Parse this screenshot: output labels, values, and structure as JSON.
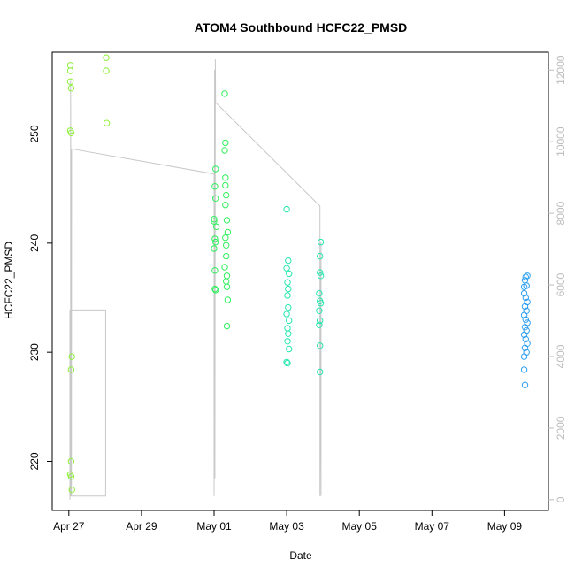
{
  "chart_data": {
    "type": "scatter",
    "title": "ATOM4 Southbound HCFC22_PMSD",
    "xlabel": "Date",
    "ylabel": "HCFC22_PMSD",
    "xlim": [
      "2016-04-26T13:00",
      "2016-05-10T05:00"
    ],
    "ylim": [
      215.5,
      257.5
    ],
    "x_ticks": [
      {
        "x": "2016-04-27",
        "label": "Apr 27"
      },
      {
        "x": "2016-04-29",
        "label": "Apr 29"
      },
      {
        "x": "2016-05-01",
        "label": "May 01"
      },
      {
        "x": "2016-05-03",
        "label": "May 03"
      },
      {
        "x": "2016-05-05",
        "label": "May 05"
      },
      {
        "x": "2016-05-07",
        "label": "May 07"
      },
      {
        "x": "2016-05-09",
        "label": "May 09"
      }
    ],
    "y_ticks": [
      220,
      230,
      240,
      250
    ],
    "right_axis": {
      "ticks": [
        "0",
        "2000",
        "4000",
        "6000",
        "8000",
        "10000",
        "12000"
      ],
      "ylim": [
        -300,
        12500
      ],
      "color": "#bdbdbd"
    },
    "grid": false,
    "marker_colors": [
      "#8ef03a",
      "#2fef5c",
      "#26e6b0",
      "#2f9ff0"
    ],
    "altitude_color": "#c8c8c8",
    "series": [
      {
        "values": [
          {
            "x": "2016-04-27T01:00",
            "y": 256.3
          },
          {
            "x": "2016-04-27T01:00",
            "y": 255.8
          },
          {
            "x": "2016-04-27T01:00",
            "y": 254.8
          },
          {
            "x": "2016-04-27T01:30",
            "y": 254.2
          },
          {
            "x": "2016-04-27T01:00",
            "y": 250.3
          },
          {
            "x": "2016-04-27T01:30",
            "y": 250.1
          },
          {
            "x": "2016-04-27T02:00",
            "y": 229.6
          },
          {
            "x": "2016-04-27T01:30",
            "y": 228.4
          },
          {
            "x": "2016-04-27T01:30",
            "y": 220.0
          },
          {
            "x": "2016-04-27T01:00",
            "y": 218.8
          },
          {
            "x": "2016-04-27T01:30",
            "y": 218.6
          },
          {
            "x": "2016-04-27T02:00",
            "y": 217.4
          },
          {
            "x": "2016-04-28T00:40",
            "y": 257.0
          },
          {
            "x": "2016-04-28T00:40",
            "y": 255.8
          },
          {
            "x": "2016-04-28T01:00",
            "y": 251.0
          }
        ]
      },
      {
        "values": [
          {
            "x": "2016-05-01T00:00",
            "y": 242.2
          },
          {
            "x": "2016-05-01T01:00",
            "y": 246.8
          },
          {
            "x": "2016-05-01T00:30",
            "y": 245.2
          },
          {
            "x": "2016-05-01T01:00",
            "y": 244.1
          },
          {
            "x": "2016-05-01T00:00",
            "y": 242.0
          },
          {
            "x": "2016-05-01T01:30",
            "y": 241.5
          },
          {
            "x": "2016-05-01T00:30",
            "y": 240.4
          },
          {
            "x": "2016-05-01T01:00",
            "y": 240.1
          },
          {
            "x": "2016-05-01T00:00",
            "y": 239.5
          },
          {
            "x": "2016-05-01T00:30",
            "y": 237.5
          },
          {
            "x": "2016-05-01T00:30",
            "y": 235.8
          },
          {
            "x": "2016-05-01T01:00",
            "y": 235.7
          },
          {
            "x": "2016-05-01T07:00",
            "y": 253.7
          },
          {
            "x": "2016-05-01T07:30",
            "y": 249.2
          },
          {
            "x": "2016-05-01T07:00",
            "y": 248.5
          },
          {
            "x": "2016-05-01T07:30",
            "y": 246.0
          },
          {
            "x": "2016-05-01T07:30",
            "y": 245.3
          },
          {
            "x": "2016-05-01T08:00",
            "y": 244.4
          },
          {
            "x": "2016-05-01T07:30",
            "y": 243.5
          },
          {
            "x": "2016-05-01T08:30",
            "y": 242.1
          },
          {
            "x": "2016-05-01T09:00",
            "y": 241.0
          },
          {
            "x": "2016-05-01T07:30",
            "y": 240.5
          },
          {
            "x": "2016-05-01T08:00",
            "y": 239.8
          },
          {
            "x": "2016-05-01T07:00",
            "y": 237.8
          },
          {
            "x": "2016-05-01T08:00",
            "y": 238.8
          },
          {
            "x": "2016-05-01T08:30",
            "y": 237.0
          },
          {
            "x": "2016-05-01T08:00",
            "y": 236.5
          },
          {
            "x": "2016-05-01T08:30",
            "y": 236.0
          },
          {
            "x": "2016-05-01T09:00",
            "y": 234.8
          },
          {
            "x": "2016-05-01T08:30",
            "y": 232.4
          }
        ]
      },
      {
        "values": [
          {
            "x": "2016-05-03T00:00",
            "y": 243.1
          },
          {
            "x": "2016-05-03T01:00",
            "y": 238.4
          },
          {
            "x": "2016-05-03T00:00",
            "y": 237.7
          },
          {
            "x": "2016-05-03T01:30",
            "y": 237.2
          },
          {
            "x": "2016-05-03T00:30",
            "y": 236.4
          },
          {
            "x": "2016-05-03T01:00",
            "y": 235.8
          },
          {
            "x": "2016-05-03T00:30",
            "y": 235.2
          },
          {
            "x": "2016-05-03T01:00",
            "y": 234.1
          },
          {
            "x": "2016-05-03T00:00",
            "y": 233.5
          },
          {
            "x": "2016-05-03T01:30",
            "y": 232.9
          },
          {
            "x": "2016-05-03T00:30",
            "y": 232.2
          },
          {
            "x": "2016-05-03T01:00",
            "y": 231.7
          },
          {
            "x": "2016-05-03T00:30",
            "y": 231.0
          },
          {
            "x": "2016-05-03T01:30",
            "y": 230.3
          },
          {
            "x": "2016-05-03T00:00",
            "y": 229.1
          },
          {
            "x": "2016-05-03T00:30",
            "y": 229.0
          },
          {
            "x": "2016-05-03T22:30",
            "y": 240.1
          },
          {
            "x": "2016-05-03T22:00",
            "y": 238.8
          },
          {
            "x": "2016-05-03T22:00",
            "y": 237.3
          },
          {
            "x": "2016-05-03T22:30",
            "y": 237.0
          },
          {
            "x": "2016-05-03T21:30",
            "y": 235.4
          },
          {
            "x": "2016-05-03T22:00",
            "y": 234.7
          },
          {
            "x": "2016-05-03T22:30",
            "y": 234.5
          },
          {
            "x": "2016-05-03T21:30",
            "y": 233.8
          },
          {
            "x": "2016-05-03T22:00",
            "y": 232.9
          },
          {
            "x": "2016-05-03T21:30",
            "y": 232.5
          },
          {
            "x": "2016-05-03T22:00",
            "y": 230.6
          },
          {
            "x": "2016-05-03T22:00",
            "y": 228.2
          }
        ]
      },
      {
        "values": [
          {
            "x": "2016-05-09T13:00",
            "y": 236.0
          },
          {
            "x": "2016-05-09T14:00",
            "y": 236.9
          },
          {
            "x": "2016-05-09T15:00",
            "y": 237.0
          },
          {
            "x": "2016-05-09T13:30",
            "y": 236.6
          },
          {
            "x": "2016-05-09T14:30",
            "y": 236.1
          },
          {
            "x": "2016-05-09T13:00",
            "y": 235.4
          },
          {
            "x": "2016-05-09T14:00",
            "y": 235.0
          },
          {
            "x": "2016-05-09T15:00",
            "y": 234.6
          },
          {
            "x": "2016-05-09T13:30",
            "y": 234.2
          },
          {
            "x": "2016-05-09T14:30",
            "y": 233.8
          },
          {
            "x": "2016-05-09T13:00",
            "y": 233.4
          },
          {
            "x": "2016-05-09T14:00",
            "y": 233.0
          },
          {
            "x": "2016-05-09T15:00",
            "y": 232.7
          },
          {
            "x": "2016-05-09T13:30",
            "y": 232.3
          },
          {
            "x": "2016-05-09T14:30",
            "y": 232.0
          },
          {
            "x": "2016-05-09T13:00",
            "y": 231.6
          },
          {
            "x": "2016-05-09T14:00",
            "y": 231.2
          },
          {
            "x": "2016-05-09T15:00",
            "y": 230.8
          },
          {
            "x": "2016-05-09T13:30",
            "y": 230.4
          },
          {
            "x": "2016-05-09T14:30",
            "y": 230.0
          },
          {
            "x": "2016-05-09T13:00",
            "y": 229.6
          },
          {
            "x": "2016-05-09T13:00",
            "y": 228.4
          },
          {
            "x": "2016-05-09T13:30",
            "y": 227.0
          }
        ]
      }
    ],
    "altitude_trace": [
      {
        "x": "2016-04-27T00:40",
        "y": 0
      },
      {
        "x": "2016-04-27T00:40",
        "y": 5300
      },
      {
        "x": "2016-04-28T00:20",
        "y": 5300
      },
      {
        "x": "2016-04-28T00:20",
        "y": 100
      },
      {
        "x": "2016-04-27T01:10",
        "y": 100
      },
      {
        "x": "2016-04-27T01:10",
        "y": 11700
      },
      {
        "x": "2016-04-27T01:40",
        "y": 100
      },
      {
        "x": "2016-04-27T01:50",
        "y": 9800
      },
      {
        "x": "2016-05-01T00:00",
        "y": 9100
      },
      {
        "x": "2016-05-01T00:00",
        "y": 100
      },
      {
        "x": "2016-05-01T00:20",
        "y": 12000
      },
      {
        "x": "2016-05-01T00:30",
        "y": 600
      },
      {
        "x": "2016-05-01T00:50",
        "y": 12300
      },
      {
        "x": "2016-05-01T01:00",
        "y": 11100
      },
      {
        "x": "2016-05-03T22:00",
        "y": 8200
      },
      {
        "x": "2016-05-03T22:00",
        "y": 100
      },
      {
        "x": "2016-05-03T22:40",
        "y": 7200
      },
      {
        "x": "2016-05-03T22:40",
        "y": 100
      }
    ]
  }
}
